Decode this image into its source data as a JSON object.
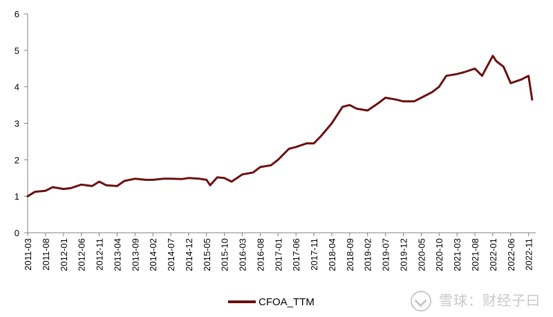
{
  "chart_data": {
    "type": "line",
    "title": "",
    "xlabel": "",
    "ylabel": "",
    "ylim": [
      0,
      6
    ],
    "y_ticks": [
      "0",
      "1",
      "2",
      "3",
      "4",
      "5",
      "6"
    ],
    "x_ticks": [
      "2011-03",
      "2011-08",
      "2012-01",
      "2012-06",
      "2012-11",
      "2013-04",
      "2013-09",
      "2014-02",
      "2014-07",
      "2014-12",
      "2015-05",
      "2015-10",
      "2016-03",
      "2016-08",
      "2017-01",
      "2017-06",
      "2017-11",
      "2018-04",
      "2018-09",
      "2019-02",
      "2019-07",
      "2019-12",
      "2020-05",
      "2020-10",
      "2021-03",
      "2021-08",
      "2022-01",
      "2022-06",
      "2022-11"
    ],
    "legend_position": "bottom",
    "grid": false,
    "series": [
      {
        "name": "CFOA_TTM",
        "color": "#6b0f0f",
        "x": [
          "2011-03",
          "2011-05",
          "2011-08",
          "2011-10",
          "2012-01",
          "2012-03",
          "2012-06",
          "2012-09",
          "2012-11",
          "2013-01",
          "2013-04",
          "2013-06",
          "2013-09",
          "2013-12",
          "2014-02",
          "2014-05",
          "2014-07",
          "2014-10",
          "2014-12",
          "2015-03",
          "2015-05",
          "2015-06",
          "2015-08",
          "2015-10",
          "2015-12",
          "2016-03",
          "2016-06",
          "2016-08",
          "2016-11",
          "2017-01",
          "2017-04",
          "2017-06",
          "2017-09",
          "2017-11",
          "2018-01",
          "2018-04",
          "2018-07",
          "2018-09",
          "2018-11",
          "2019-02",
          "2019-05",
          "2019-07",
          "2019-10",
          "2019-12",
          "2020-03",
          "2020-05",
          "2020-08",
          "2020-10",
          "2020-12",
          "2021-03",
          "2021-05",
          "2021-08",
          "2021-10",
          "2022-01",
          "2022-02",
          "2022-04",
          "2022-06",
          "2022-09",
          "2022-11",
          "2022-12"
        ],
        "values": [
          1.0,
          1.12,
          1.15,
          1.25,
          1.2,
          1.22,
          1.32,
          1.28,
          1.4,
          1.3,
          1.28,
          1.42,
          1.48,
          1.45,
          1.45,
          1.48,
          1.48,
          1.47,
          1.5,
          1.48,
          1.45,
          1.3,
          1.52,
          1.5,
          1.4,
          1.6,
          1.65,
          1.8,
          1.85,
          2.0,
          2.3,
          2.35,
          2.45,
          2.45,
          2.65,
          3.0,
          3.45,
          3.5,
          3.4,
          3.35,
          3.55,
          3.7,
          3.65,
          3.6,
          3.6,
          3.7,
          3.85,
          4.0,
          4.3,
          4.35,
          4.4,
          4.5,
          4.3,
          4.85,
          4.7,
          4.55,
          4.1,
          4.2,
          4.3,
          3.65
        ]
      }
    ]
  },
  "legend": {
    "label": "CFOA_TTM"
  },
  "watermark": {
    "text": "雪球：财经子曰"
  }
}
